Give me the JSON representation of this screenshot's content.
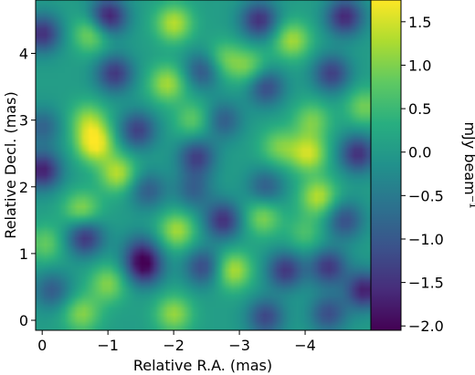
{
  "chart_data": {
    "type": "heatmap",
    "xlabel": "Relative R.A. (mas)",
    "ylabel": "Relative Decl. (mas)",
    "colorbar_label": "mJy beam⁻¹",
    "xlim": [
      0.1,
      -5.0
    ],
    "ylim": [
      -0.15,
      4.8
    ],
    "x_ticks": [
      0,
      -1,
      -2,
      -3,
      -4
    ],
    "x_tick_labels": [
      "0",
      "−1",
      "−2",
      "−3",
      "−4"
    ],
    "y_ticks": [
      0,
      1,
      2,
      3,
      4
    ],
    "y_tick_labels": [
      "0",
      "1",
      "2",
      "3",
      "4"
    ],
    "color_range": [
      -2.05,
      1.75
    ],
    "colorbar_ticks": [
      1.5,
      1.0,
      0.5,
      0.0,
      -0.5,
      -1.0,
      -1.5,
      -2.0
    ],
    "colorbar_tick_labels": [
      "1.5",
      "1.0",
      "0.5",
      "0.0",
      "−0.5",
      "−1.0",
      "−1.5",
      "−2.0"
    ],
    "colormap": "viridis",
    "blobs": [
      {
        "x": -1.0,
        "y": 4.55,
        "v": -1.9
      },
      {
        "x": 0.0,
        "y": 4.3,
        "v": -1.6
      },
      {
        "x": -3.3,
        "y": 4.5,
        "v": -1.6
      },
      {
        "x": -4.6,
        "y": 4.55,
        "v": -1.7
      },
      {
        "x": -0.75,
        "y": 4.3,
        "v": 1.1
      },
      {
        "x": -2.0,
        "y": 4.45,
        "v": 1.3
      },
      {
        "x": -3.8,
        "y": 4.2,
        "v": 1.2
      },
      {
        "x": -1.1,
        "y": 3.7,
        "v": -1.5
      },
      {
        "x": -2.45,
        "y": 3.75,
        "v": -1.2
      },
      {
        "x": -3.4,
        "y": 3.5,
        "v": -1.3
      },
      {
        "x": -4.4,
        "y": 3.7,
        "v": -1.4
      },
      {
        "x": -1.9,
        "y": 3.55,
        "v": 1.2
      },
      {
        "x": -2.75,
        "y": 3.9,
        "v": 0.9
      },
      {
        "x": -3.15,
        "y": 3.8,
        "v": 0.9
      },
      {
        "x": -4.9,
        "y": 3.2,
        "v": 0.9
      },
      {
        "x": -0.7,
        "y": 3.0,
        "v": 1.0
      },
      {
        "x": -1.45,
        "y": 2.85,
        "v": -1.4
      },
      {
        "x": -2.3,
        "y": 3.0,
        "v": 0.8
      },
      {
        "x": -2.75,
        "y": 3.0,
        "v": -1.0
      },
      {
        "x": -4.1,
        "y": 3.0,
        "v": 0.9
      },
      {
        "x": 0.0,
        "y": 2.9,
        "v": -0.9
      },
      {
        "x": -0.8,
        "y": 2.65,
        "v": 1.7
      },
      {
        "x": -1.15,
        "y": 2.2,
        "v": 1.3
      },
      {
        "x": -2.35,
        "y": 2.45,
        "v": -1.4
      },
      {
        "x": -3.6,
        "y": 2.6,
        "v": 0.9
      },
      {
        "x": -4.05,
        "y": 2.5,
        "v": 1.4
      },
      {
        "x": -4.8,
        "y": 2.5,
        "v": -1.6
      },
      {
        "x": 0.0,
        "y": 2.25,
        "v": -1.8
      },
      {
        "x": -1.6,
        "y": 1.95,
        "v": -1.0
      },
      {
        "x": -2.3,
        "y": 1.95,
        "v": -0.9
      },
      {
        "x": -3.4,
        "y": 2.0,
        "v": -1.0
      },
      {
        "x": -4.2,
        "y": 1.85,
        "v": 1.3
      },
      {
        "x": -0.6,
        "y": 1.65,
        "v": 1.1
      },
      {
        "x": -2.05,
        "y": 1.35,
        "v": 1.2
      },
      {
        "x": -2.75,
        "y": 1.5,
        "v": -1.6
      },
      {
        "x": -3.35,
        "y": 1.55,
        "v": 1.0
      },
      {
        "x": -4.6,
        "y": 1.5,
        "v": -1.2
      },
      {
        "x": -0.65,
        "y": 1.25,
        "v": -1.6
      },
      {
        "x": -0.05,
        "y": 1.15,
        "v": 0.8
      },
      {
        "x": -1.5,
        "y": 1.05,
        "v": -0.9
      },
      {
        "x": -4.0,
        "y": 1.3,
        "v": 0.6
      },
      {
        "x": -1.55,
        "y": 0.8,
        "v": -1.8
      },
      {
        "x": -2.45,
        "y": 0.8,
        "v": -1.3
      },
      {
        "x": -2.9,
        "y": 0.75,
        "v": 1.3
      },
      {
        "x": -3.7,
        "y": 0.75,
        "v": -1.5
      },
      {
        "x": -4.35,
        "y": 0.8,
        "v": -1.5
      },
      {
        "x": -1.0,
        "y": 0.55,
        "v": 1.0
      },
      {
        "x": -0.15,
        "y": 0.45,
        "v": -1.0
      },
      {
        "x": -4.9,
        "y": 0.45,
        "v": -1.8
      },
      {
        "x": -2.0,
        "y": 0.1,
        "v": 1.1
      },
      {
        "x": -3.4,
        "y": 0.05,
        "v": -1.3
      },
      {
        "x": -4.35,
        "y": 0.1,
        "v": -1.2
      },
      {
        "x": -0.6,
        "y": 0.1,
        "v": 1.0
      }
    ]
  }
}
